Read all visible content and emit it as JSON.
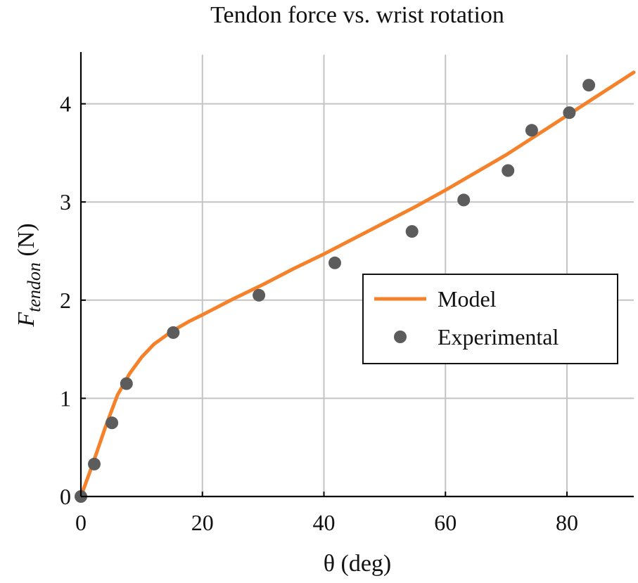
{
  "chart_data": {
    "type": "line",
    "title": "Tendon force vs. wrist rotation",
    "xlabel": "θ (deg)",
    "ylabel": {
      "main": "F",
      "subscript": "tendon",
      "unit": " (N)"
    },
    "xlim": [
      0,
      91
    ],
    "ylim": [
      0,
      4.5
    ],
    "xticks": [
      0,
      20,
      40,
      60,
      80
    ],
    "yticks": [
      0,
      1,
      2,
      3,
      4
    ],
    "grid": true,
    "legend_position": "center-right",
    "series": [
      {
        "name": "Model",
        "kind": "line",
        "color": "#f5822a",
        "x": [
          0,
          2,
          4,
          6,
          8,
          10,
          12,
          14,
          16,
          18,
          20,
          25,
          30,
          35,
          40,
          45,
          50,
          55,
          60,
          65,
          70,
          75,
          80,
          85,
          91
        ],
        "y": [
          0,
          0.34,
          0.7,
          1.03,
          1.25,
          1.42,
          1.55,
          1.64,
          1.72,
          1.79,
          1.85,
          2.01,
          2.16,
          2.32,
          2.47,
          2.63,
          2.79,
          2.95,
          3.12,
          3.3,
          3.48,
          3.68,
          3.88,
          4.08,
          4.32
        ]
      },
      {
        "name": "Experimental",
        "kind": "scatter",
        "color": "#5c5c5c",
        "x": [
          0,
          2.2,
          5.1,
          7.5,
          15.2,
          29.3,
          41.8,
          54.5,
          63,
          70.3,
          74.2,
          80.4,
          83.6
        ],
        "y": [
          0,
          0.33,
          0.75,
          1.15,
          1.67,
          2.05,
          2.38,
          2.7,
          3.02,
          3.32,
          3.73,
          3.91,
          4.19
        ]
      }
    ]
  }
}
